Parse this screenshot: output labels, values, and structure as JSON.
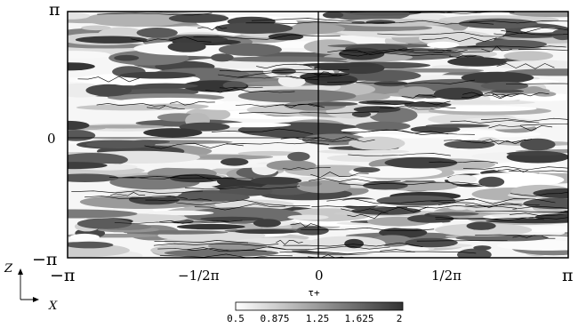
{
  "chart_data": {
    "type": "heatmap",
    "title": "",
    "xlabel": "X",
    "ylabel": "Z",
    "x_ticks": [
      "−π",
      "−1/2π",
      "0",
      "1/2π",
      "π"
    ],
    "y_ticks": [
      "π",
      "0",
      "−π"
    ],
    "xlim": [
      -3.14159,
      3.14159
    ],
    "ylim": [
      -3.14159,
      3.14159
    ],
    "colorbar": {
      "label": "τ+",
      "range": [
        0.5,
        2
      ],
      "ticks": [
        "0.5",
        "0.875",
        "1.25",
        "1.625",
        "2"
      ],
      "colormap": [
        "#ffffff",
        "#333333"
      ]
    },
    "contour_lines": true,
    "pattern": "streamwise-elongated streaks of wall shear stress"
  }
}
